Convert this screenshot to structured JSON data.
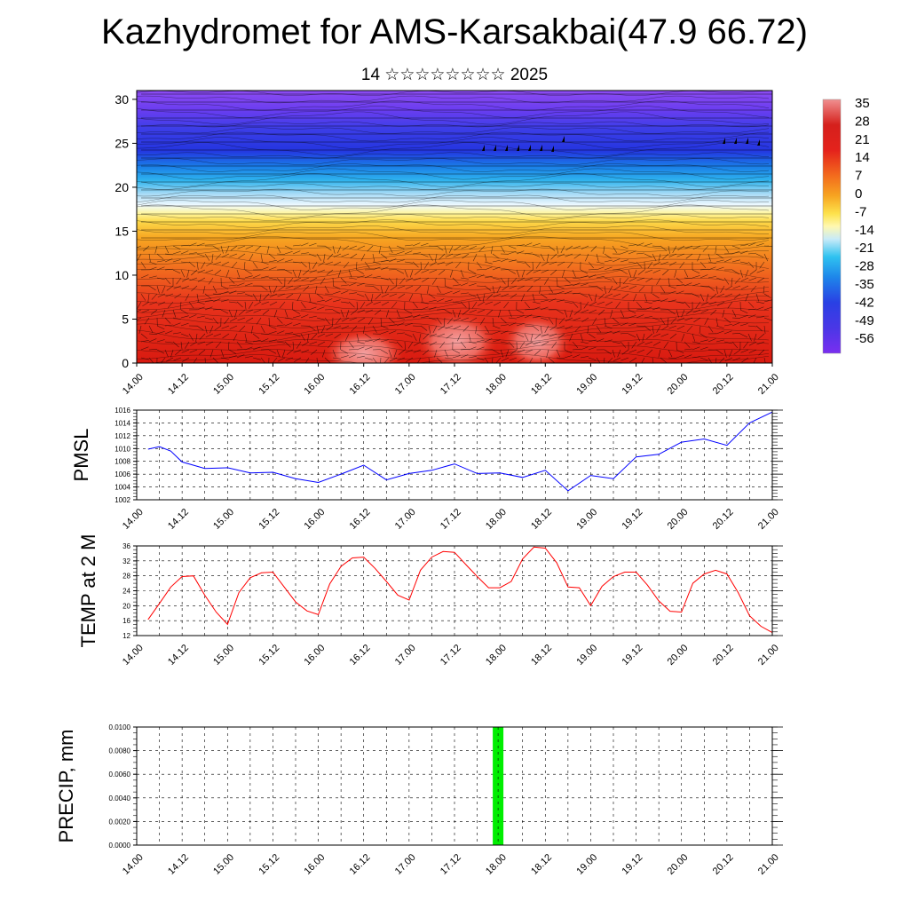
{
  "header": {
    "title": "Kazhydromet for AMS-Karsakbai(47.9 66.72)",
    "subtitle": "14 ☆☆☆☆☆☆☆☆ 2025"
  },
  "chart_data": [
    {
      "type": "heatmap",
      "name": "temperature-wind cross-section",
      "x_ticks": [
        "14.00",
        "14.12",
        "15.00",
        "15.12",
        "16.00",
        "16.12",
        "17.00",
        "17.12",
        "18.00",
        "18.12",
        "19.00",
        "19.12",
        "20.00",
        "20.12",
        "21.00"
      ],
      "y_ticks": [
        "0",
        "5",
        "10",
        "15",
        "20",
        "25",
        "30"
      ],
      "ylim": [
        0,
        31
      ],
      "colorbar_labels": [
        "35",
        "28",
        "21",
        "14",
        "7",
        "0",
        "-7",
        "-14",
        "-21",
        "-28",
        "-35",
        "-42",
        "-49",
        "-56"
      ],
      "colorbar_range": [
        -60,
        38
      ],
      "colors": {
        "cold": "#6a1fe0",
        "blue": "#2a46e6",
        "cyan": "#2ab8ee",
        "pale": "#eaf6ff",
        "yellow": "#fff47a",
        "orange": "#f7a21e",
        "red": "#e5201e",
        "hot": "#f08a8a"
      }
    },
    {
      "type": "line",
      "ylabel": "PMSL",
      "x_ticks": [
        "14.00",
        "14.12",
        "15.00",
        "15.12",
        "16.00",
        "16.12",
        "17.00",
        "17.12",
        "18.00",
        "18.12",
        "19.00",
        "19.12",
        "20.00",
        "20.12",
        "21.00"
      ],
      "y_ticks": [
        "1002",
        "1004",
        "1006",
        "1008",
        "1010",
        "1012",
        "1014",
        "1016"
      ],
      "ylim": [
        1002,
        1016
      ],
      "color": "#0000ff",
      "x": [
        0.125,
        0.25,
        0.375,
        0.5,
        0.75,
        1,
        1.25,
        1.5,
        1.75,
        2,
        2.25,
        2.5,
        2.75,
        3,
        3.25,
        3.5,
        3.75,
        4,
        4.25,
        4.5,
        4.75,
        5,
        5.25,
        5.5,
        5.75,
        6,
        6.25,
        6.5,
        6.75,
        7
      ],
      "values": [
        1009.9,
        1010.3,
        1009.6,
        1007.9,
        1006.9,
        1007.0,
        1006.2,
        1006.3,
        1005.3,
        1004.7,
        1006.0,
        1007.4,
        1005.1,
        1006.1,
        1006.6,
        1007.6,
        1006.1,
        1006.2,
        1005.5,
        1006.6,
        1003.4,
        1005.8,
        1005.3,
        1008.7,
        1009.1,
        1011.0,
        1011.5,
        1010.5,
        1014.0,
        1015.7
      ],
      "x_note": "days from 14.00"
    },
    {
      "type": "line",
      "ylabel": "TEMP at 2 M",
      "x_ticks": [
        "14.00",
        "14.12",
        "15.00",
        "15.12",
        "16.00",
        "16.12",
        "17.00",
        "17.12",
        "18.00",
        "18.12",
        "19.00",
        "19.12",
        "20.00",
        "20.12",
        "21.00"
      ],
      "y_ticks": [
        "12",
        "16",
        "20",
        "24",
        "28",
        "32",
        "36"
      ],
      "ylim": [
        12,
        36
      ],
      "color": "#ff0000",
      "values": [
        16.3,
        20.6,
        25.0,
        27.8,
        28.0,
        22.8,
        18.3,
        15.0,
        23.5,
        27.5,
        28.8,
        29.0,
        25.0,
        21.0,
        18.6,
        17.6,
        25.8,
        30.5,
        32.8,
        33.0,
        30.0,
        26.5,
        22.8,
        21.5,
        29.5,
        33.0,
        34.5,
        34.3,
        31.0,
        27.8,
        24.8,
        24.8,
        26.5,
        32.5,
        35.7,
        35.4,
        31.5,
        25.0,
        24.8,
        20.0,
        25.2,
        27.8,
        29.0,
        29.0,
        25.5,
        21.3,
        18.5,
        18.3,
        26.0,
        28.5,
        29.5,
        28.5,
        23.5,
        17.3,
        14.5,
        12.8
      ]
    },
    {
      "type": "bar",
      "ylabel": "PRECIP, mm",
      "x_ticks": [
        "14.00",
        "14.12",
        "15.00",
        "15.12",
        "16.00",
        "16.12",
        "17.00",
        "17.12",
        "18.00",
        "18.12",
        "19.00",
        "19.12",
        "20.00",
        "20.12",
        "21.00"
      ],
      "y_ticks": [
        "0.0000",
        "0.0020",
        "0.0040",
        "0.0060",
        "0.0080",
        "0.0100"
      ],
      "ylim": [
        0,
        0.01
      ],
      "color": "#00ee00",
      "bars": [
        {
          "x": 3.98,
          "value": 0.01
        }
      ]
    }
  ]
}
